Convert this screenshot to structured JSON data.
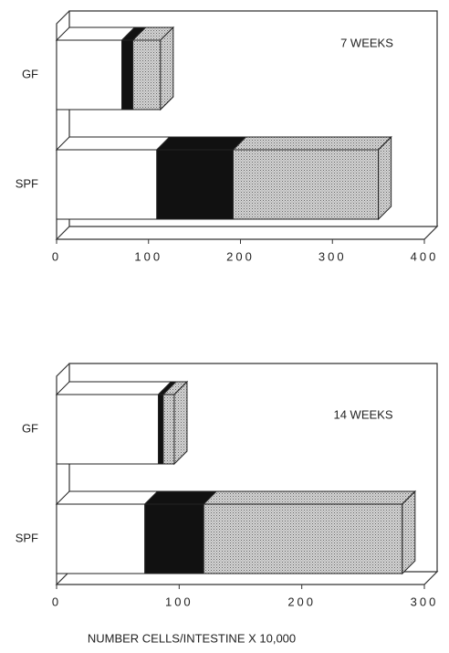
{
  "chart_data": [
    {
      "type": "bar",
      "orientation": "horizontal",
      "stacked": true,
      "annotation": "7 WEEKS",
      "categories": [
        "GF",
        "SPF"
      ],
      "series": [
        {
          "color": "#ffffff",
          "values": [
            71,
            109
          ]
        },
        {
          "color": "#111111",
          "values": [
            12,
            83
          ]
        },
        {
          "color": "#b5b5b5",
          "values": [
            30,
            158
          ]
        }
      ],
      "xlim": [
        0,
        400
      ],
      "xticks": [
        0,
        100,
        200,
        300,
        400
      ]
    },
    {
      "type": "bar",
      "orientation": "horizontal",
      "stacked": true,
      "annotation": "14 WEEKS",
      "x_label": "NUMBER CELLS/INTESTINE X 10,000",
      "categories": [
        "GF",
        "SPF"
      ],
      "series": [
        {
          "color": "#ffffff",
          "values": [
            83,
            72
          ]
        },
        {
          "color": "#111111",
          "values": [
            4,
            48
          ]
        },
        {
          "color": "#b5b5b5",
          "values": [
            9,
            162
          ]
        }
      ],
      "xlim": [
        0,
        300
      ],
      "xticks": [
        0,
        100,
        200,
        300
      ]
    }
  ]
}
